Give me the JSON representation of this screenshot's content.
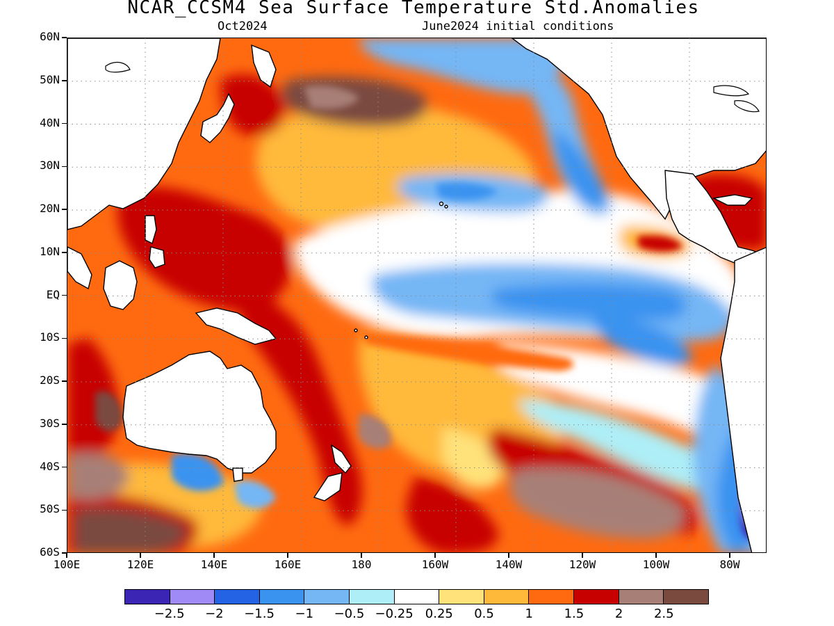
{
  "title": "NCAR_CCSM4 Sea Surface Temperature Std.Anomalies",
  "subtitle_left": "Oct2024",
  "subtitle_right": "June2024 initial conditions",
  "lat_labels": [
    "60N",
    "50N",
    "40N",
    "30N",
    "20N",
    "10N",
    "EQ",
    "10S",
    "20S",
    "30S",
    "40S",
    "50S",
    "60S"
  ],
  "lon_labels": [
    "100E",
    "120E",
    "140E",
    "160E",
    "180",
    "160W",
    "140W",
    "120W",
    "100W",
    "80W"
  ],
  "colorbar": {
    "colors": [
      "#3a25b5",
      "#a08af5",
      "#2463e3",
      "#3b93f0",
      "#75b6f5",
      "#aeeef6",
      "#ffffff",
      "#ffe27a",
      "#ffb93a",
      "#ff6a10",
      "#c70000",
      "#a87f76",
      "#7a4a3f"
    ],
    "labels": [
      "−2.5",
      "−2",
      "−1.5",
      "−1",
      "−0.5",
      "−0.25",
      "0.25",
      "0.5",
      "1",
      "1.5",
      "2",
      "2.5"
    ]
  },
  "map_colors": {
    "land": "#ffffff",
    "coast": "#000000",
    "grid": "#888888"
  }
}
